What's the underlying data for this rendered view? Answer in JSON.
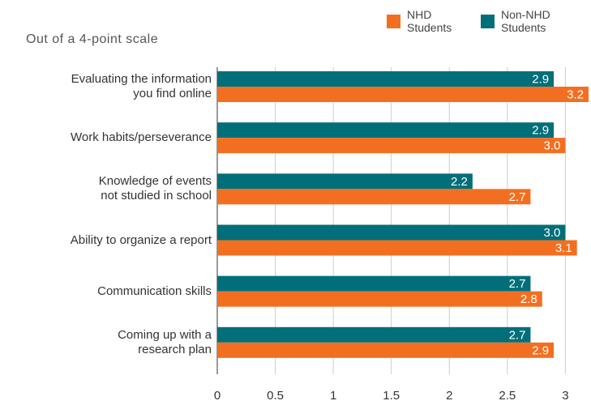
{
  "chart_data": {
    "type": "bar",
    "orientation": "horizontal",
    "subtitle": "Out of a 4-point scale",
    "categories": [
      "Evaluating the information\nyou find online",
      "Work habits/perseverance",
      "Knowledge of events\nnot studied in school",
      "Ability to organize a report",
      "Communication skills",
      "Coming up with a\nresearch plan"
    ],
    "series": [
      {
        "name": "NHD\nStudents",
        "color": "#f26f21",
        "values": [
          3.2,
          3.0,
          2.7,
          3.1,
          2.8,
          2.9
        ],
        "value_labels": [
          "3.2",
          "3.0",
          "2.7",
          "3.1",
          "2.8",
          "2.9"
        ]
      },
      {
        "name": "Non-NHD\nStudents",
        "color": "#006f7a",
        "values": [
          2.9,
          2.9,
          2.2,
          3.0,
          2.7,
          2.7
        ],
        "value_labels": [
          "2.9",
          "2.9",
          "2.2",
          "3.0",
          "2.7",
          "2.7"
        ]
      }
    ],
    "xlim": [
      0,
      3.2
    ],
    "xticks": [
      0,
      0.5,
      1,
      1.5,
      2,
      2.5,
      3
    ],
    "grid": true
  }
}
